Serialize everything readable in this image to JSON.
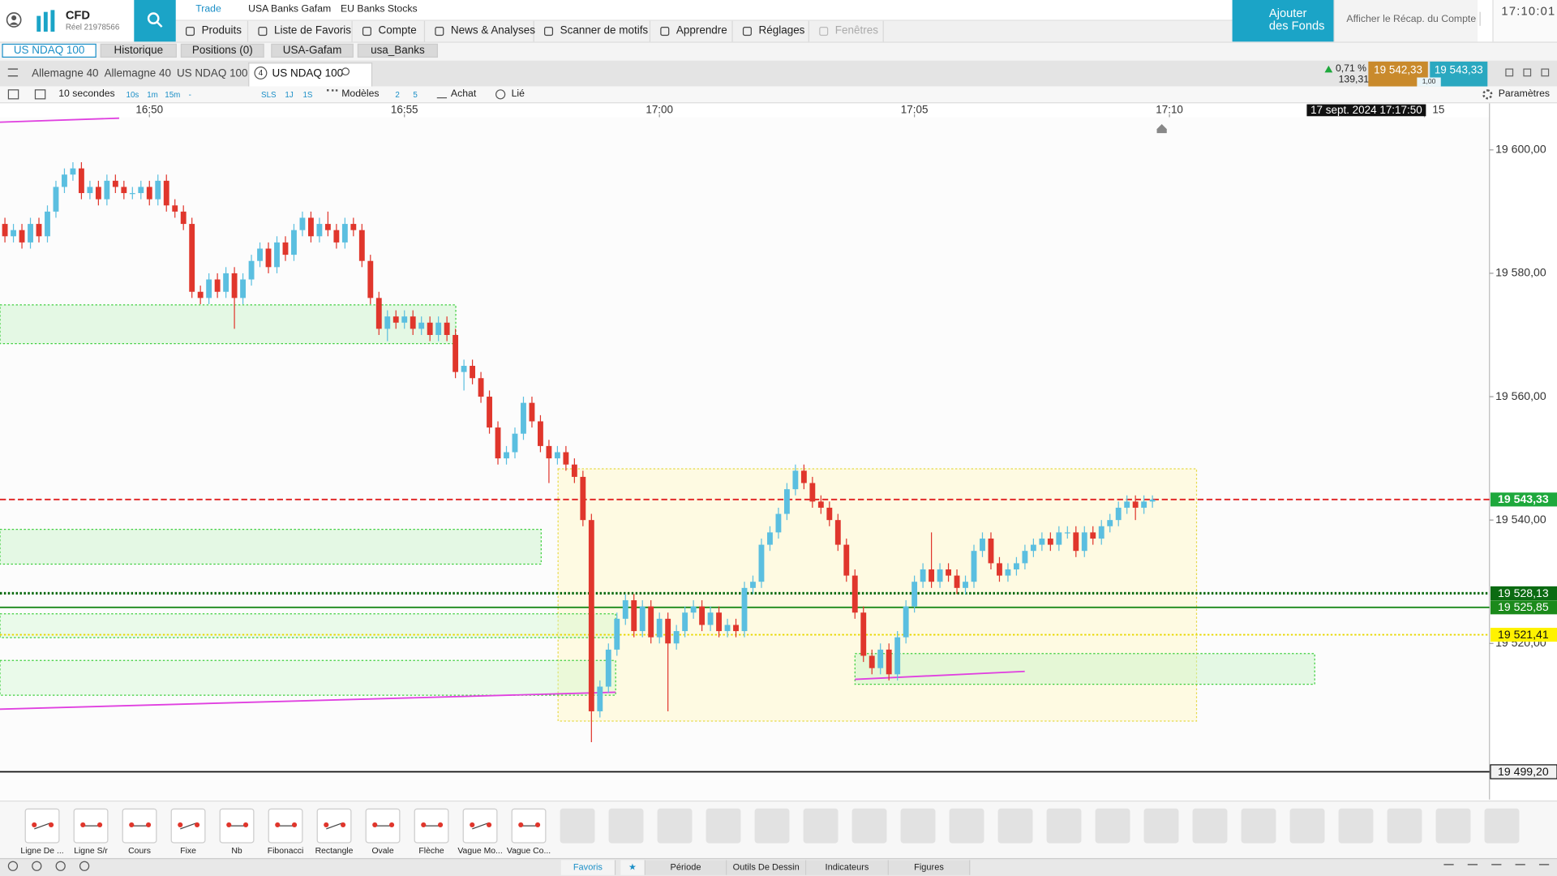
{
  "ui": {
    "brand": {
      "product": "CFD",
      "account": "Réel 21978566"
    },
    "top_tabs": [
      "Trade",
      "USA Banks Gafam",
      "EU Banks Stocks"
    ],
    "menu": [
      "Produits",
      "Liste de Favoris",
      "Compte",
      "News & Analyses",
      "Scanner de motifs",
      "Apprendre",
      "Réglages",
      "Fenêtres"
    ],
    "add_funds": "Ajouter des Fonds",
    "account_summary": "Afficher le Récap. du Compte",
    "clock": "17:10:01",
    "sub_tabs": [
      "US NDAQ 100",
      "Historique",
      "Positions (0)",
      "USA-Gafam",
      "usa_Banks"
    ],
    "chart_tabs": [
      "Allemagne 40",
      "Allemagne 40",
      "US NDAQ 100",
      "US NDAQ 100"
    ],
    "chart_tab_count": "4",
    "change": {
      "percent": "0,71 %",
      "points": "139,31"
    },
    "sell": "19 542,33",
    "buy": "19 543,33",
    "size": "1,00",
    "toolbar": {
      "interval": "10 secondes",
      "ranges": [
        "10s",
        "1m",
        "15m",
        "-"
      ],
      "periods": [
        "SLS",
        "1J",
        "1S"
      ],
      "models": "Modèles",
      "counts": [
        "2",
        "5"
      ],
      "buy": "Achat",
      "linked": "Lié",
      "settings": "Paramètres"
    },
    "tools": [
      "Ligne De ...",
      "Ligne S/r",
      "Cours",
      "Fixe",
      "Nb",
      "Fibonacci",
      "Rectangle",
      "Ovale",
      "Flèche",
      "Vague Mo...",
      "Vague Co..."
    ],
    "bottom_tabs": [
      "Favoris",
      "★",
      "Période",
      "Outils De Dessin",
      "Indicateurs",
      "Figures"
    ]
  },
  "chart_data": {
    "type": "candlestick",
    "up_color": "#5bbfe0",
    "down_color": "#e0362c",
    "date_label": "17 sept. 2024 17:17:50",
    "xlim": [
      -0.58,
      174.65
    ],
    "xticks": [
      {
        "value": 17,
        "label": "16:50"
      },
      {
        "value": 47,
        "label": "16:55"
      },
      {
        "value": 77,
        "label": "17:00"
      },
      {
        "value": 107,
        "label": "17:05"
      },
      {
        "value": 137,
        "label": "17:10"
      },
      {
        "value": 167,
        "label": "15"
      }
    ],
    "ylim": [
      19494.7,
      19605.3
    ],
    "yticks": [
      {
        "value": 19600,
        "label": "19 600,00"
      },
      {
        "value": 19580,
        "label": "19 580,00"
      },
      {
        "value": 19560,
        "label": "19 560,00"
      },
      {
        "value": 19540,
        "label": "19 540,00"
      },
      {
        "value": 19520,
        "label": "19 520,00"
      }
    ],
    "levels": [
      {
        "value": 19543.33,
        "label": "19 543,33",
        "color": "#e02020",
        "style": "dashed",
        "label_bg": "#1ea83c",
        "label_color": "#ffffff"
      },
      {
        "value": 19528.13,
        "label": "19 528,13",
        "color": "#0b6b12",
        "style": "dotted",
        "label_bg": "#0b6b12",
        "label_color": "#ffffff"
      },
      {
        "value": 19525.85,
        "label": "19 525,85",
        "color": "#1b8a1b",
        "style": "solid",
        "label_bg": "#1b8a1b",
        "label_color": "#ffffff"
      },
      {
        "value": 19521.41,
        "label": "19 521,41",
        "color": "#e8d800",
        "style": "dotted",
        "label_bg": "#fff200",
        "label_color": "#111111"
      },
      {
        "value": 19499.2,
        "label": "19 499,20",
        "color": "#111111",
        "style": "solid",
        "label_bg": "#f2f2f2",
        "label_color": "#111111"
      }
    ],
    "candles": [
      [
        19588,
        19589,
        19585,
        19586
      ],
      [
        19586,
        19588,
        19585,
        19587
      ],
      [
        19587,
        19588,
        19584,
        19585
      ],
      [
        19585,
        19589,
        19584,
        19588
      ],
      [
        19588,
        19589,
        19585,
        19586
      ],
      [
        19586,
        19591,
        19585,
        19590
      ],
      [
        19590,
        19595,
        19589,
        19594
      ],
      [
        19594,
        19597,
        19593,
        19596
      ],
      [
        19596,
        19598,
        19595,
        19597
      ],
      [
        19597,
        19598,
        19592,
        19593
      ],
      [
        19593,
        19595,
        19592,
        19594
      ],
      [
        19594,
        19595,
        19591,
        19592
      ],
      [
        19592,
        19596,
        19591,
        19595
      ],
      [
        19595,
        19596,
        19593,
        19594
      ],
      [
        19594,
        19595,
        19592,
        19593
      ],
      [
        19593,
        19594,
        19592,
        19593
      ],
      [
        19593,
        19595,
        19592,
        19594
      ],
      [
        19594,
        19595,
        19591,
        19592
      ],
      [
        19592,
        19596,
        19591,
        19595
      ],
      [
        19595,
        19596,
        19590,
        19591
      ],
      [
        19591,
        19592,
        19589,
        19590
      ],
      [
        19590,
        19591,
        19587,
        19588
      ],
      [
        19588,
        19589,
        19576,
        19577
      ],
      [
        19577,
        19578,
        19575,
        19576
      ],
      [
        19576,
        19580,
        19575,
        19579
      ],
      [
        19579,
        19580,
        19576,
        19577
      ],
      [
        19577,
        19581,
        19576,
        19580
      ],
      [
        19580,
        19581,
        19571,
        19576
      ],
      [
        19576,
        19580,
        19575,
        19579
      ],
      [
        19579,
        19583,
        19578,
        19582
      ],
      [
        19582,
        19585,
        19581,
        19584
      ],
      [
        19584,
        19585,
        19580,
        19581
      ],
      [
        19581,
        19586,
        19580,
        19585
      ],
      [
        19585,
        19586,
        19582,
        19583
      ],
      [
        19583,
        19588,
        19582,
        19587
      ],
      [
        19587,
        19590,
        19586,
        19589
      ],
      [
        19589,
        19590,
        19585,
        19586
      ],
      [
        19586,
        19589,
        19585,
        19588
      ],
      [
        19588,
        19590,
        19586,
        19587
      ],
      [
        19587,
        19588,
        19584,
        19585
      ],
      [
        19585,
        19589,
        19584,
        19588
      ],
      [
        19588,
        19589,
        19586,
        19587
      ],
      [
        19587,
        19588,
        19581,
        19582
      ],
      [
        19582,
        19583,
        19575,
        19576
      ],
      [
        19576,
        19577,
        19570,
        19571
      ],
      [
        19571,
        19574,
        19569,
        19573
      ],
      [
        19573,
        19574,
        19571,
        19572
      ],
      [
        19572,
        19574,
        19571,
        19573
      ],
      [
        19573,
        19574,
        19570,
        19571
      ],
      [
        19571,
        19573,
        19570,
        19572
      ],
      [
        19572,
        19573,
        19569,
        19570
      ],
      [
        19570,
        19573,
        19569,
        19572
      ],
      [
        19572,
        19573,
        19569,
        19570
      ],
      [
        19570,
        19571,
        19563,
        19564
      ],
      [
        19564,
        19566,
        19561,
        19565
      ],
      [
        19565,
        19566,
        19562,
        19563
      ],
      [
        19563,
        19564,
        19559,
        19560
      ],
      [
        19560,
        19561,
        19554,
        19555
      ],
      [
        19555,
        19556,
        19549,
        19550
      ],
      [
        19550,
        19552,
        19549,
        19551
      ],
      [
        19551,
        19555,
        19550,
        19554
      ],
      [
        19554,
        19560,
        19553,
        19559
      ],
      [
        19559,
        19560,
        19555,
        19556
      ],
      [
        19556,
        19557,
        19551,
        19552
      ],
      [
        19552,
        19553,
        19546,
        19550
      ],
      [
        19550,
        19552,
        19549,
        19551
      ],
      [
        19551,
        19552,
        19548,
        19549
      ],
      [
        19549,
        19550,
        19546,
        19547
      ],
      [
        19547,
        19548,
        19539,
        19540
      ],
      [
        19540,
        19541,
        19504,
        19509
      ],
      [
        19509,
        19514,
        19508,
        19513
      ],
      [
        19513,
        19520,
        19512,
        19519
      ],
      [
        19519,
        19525,
        19518,
        19524
      ],
      [
        19524,
        19528,
        19523,
        19527
      ],
      [
        19527,
        19528,
        19521,
        19522
      ],
      [
        19522,
        19527,
        19521,
        19526
      ],
      [
        19526,
        19527,
        19520,
        19521
      ],
      [
        19521,
        19525,
        19520,
        19524
      ],
      [
        19524,
        19525,
        19509,
        19520
      ],
      [
        19520,
        19523,
        19519,
        19522
      ],
      [
        19522,
        19526,
        19521,
        19525
      ],
      [
        19525,
        19527,
        19524,
        19526
      ],
      [
        19526,
        19527,
        19522,
        19523
      ],
      [
        19523,
        19526,
        19522,
        19525
      ],
      [
        19525,
        19526,
        19521,
        19522
      ],
      [
        19522,
        19524,
        19521,
        19523
      ],
      [
        19523,
        19524,
        19521,
        19522
      ],
      [
        19522,
        19530,
        19521,
        19529
      ],
      [
        19529,
        19531,
        19528,
        19530
      ],
      [
        19530,
        19537,
        19529,
        19536
      ],
      [
        19536,
        19539,
        19535,
        19538
      ],
      [
        19538,
        19542,
        19537,
        19541
      ],
      [
        19541,
        19546,
        19540,
        19545
      ],
      [
        19545,
        19549,
        19544,
        19548
      ],
      [
        19548,
        19549,
        19545,
        19546
      ],
      [
        19546,
        19547,
        19542,
        19543
      ],
      [
        19543,
        19544,
        19541,
        19542
      ],
      [
        19542,
        19543,
        19539,
        19540
      ],
      [
        19540,
        19541,
        19535,
        19536
      ],
      [
        19536,
        19537,
        19530,
        19531
      ],
      [
        19531,
        19532,
        19524,
        19525
      ],
      [
        19525,
        19526,
        19517,
        19518
      ],
      [
        19518,
        19519,
        19515,
        19516
      ],
      [
        19516,
        19520,
        19515,
        19519
      ],
      [
        19519,
        19520,
        19514,
        19515
      ],
      [
        19515,
        19522,
        19514,
        19521
      ],
      [
        19521,
        19527,
        19520,
        19526
      ],
      [
        19526,
        19531,
        19525,
        19530
      ],
      [
        19530,
        19533,
        19529,
        19532
      ],
      [
        19532,
        19538,
        19529,
        19530
      ],
      [
        19530,
        19533,
        19529,
        19532
      ],
      [
        19532,
        19533,
        19530,
        19531
      ],
      [
        19531,
        19532,
        19528,
        19529
      ],
      [
        19529,
        19531,
        19528,
        19530
      ],
      [
        19530,
        19536,
        19529,
        19535
      ],
      [
        19535,
        19538,
        19534,
        19537
      ],
      [
        19537,
        19538,
        19532,
        19533
      ],
      [
        19533,
        19534,
        19530,
        19531
      ],
      [
        19531,
        19533,
        19530,
        19532
      ],
      [
        19532,
        19534,
        19531,
        19533
      ],
      [
        19533,
        19536,
        19532,
        19535
      ],
      [
        19535,
        19537,
        19534,
        19536
      ],
      [
        19536,
        19538,
        19535,
        19537
      ],
      [
        19537,
        19538,
        19535,
        19536
      ],
      [
        19536,
        19539,
        19535,
        19538
      ],
      [
        19538,
        19539,
        19537,
        19538
      ],
      [
        19538,
        19539,
        19534,
        19535
      ],
      [
        19535,
        19539,
        19534,
        19538
      ],
      [
        19538,
        19539,
        19536,
        19537
      ],
      [
        19537,
        19540,
        19536,
        19539
      ],
      [
        19539,
        19541,
        19538,
        19540
      ],
      [
        19540,
        19543,
        19539,
        19542
      ],
      [
        19542,
        19544,
        19541,
        19543
      ],
      [
        19543,
        19544,
        19540,
        19542
      ],
      [
        19542,
        19544,
        19541,
        19543
      ],
      [
        19543,
        19544,
        19542,
        19543.33
      ]
    ]
  }
}
